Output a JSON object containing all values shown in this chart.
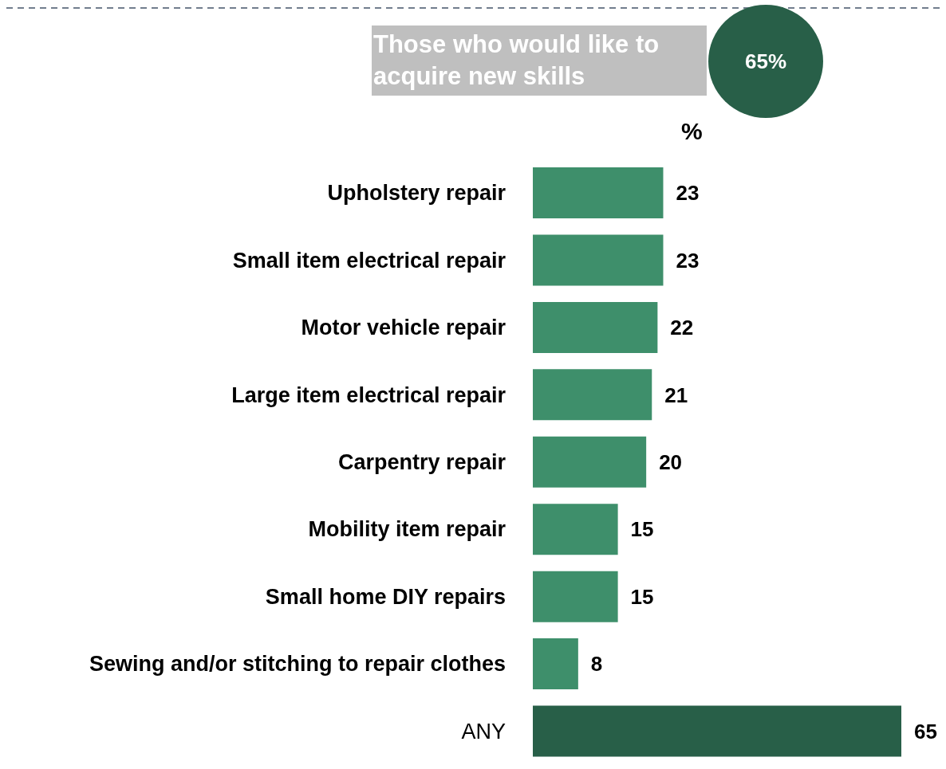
{
  "chart_data": {
    "type": "bar",
    "orientation": "horizontal",
    "title": "Those who would like to acquire new skills",
    "xlabel": "%",
    "annotations": [
      "65%"
    ],
    "categories": [
      "Upholstery repair",
      "Small item electrical repair",
      "Motor vehicle repair",
      "Large item electrical repair",
      "Carpentry repair",
      "Mobility item repair",
      "Small home DIY repairs",
      "Sewing and/or stitching to repair clothes",
      "ANY"
    ],
    "values": [
      23,
      23,
      22,
      21,
      20,
      15,
      15,
      8,
      65
    ],
    "colors": [
      "#3e8f6b",
      "#3e8f6b",
      "#3e8f6b",
      "#3e8f6b",
      "#3e8f6b",
      "#3e8f6b",
      "#3e8f6b",
      "#3e8f6b",
      "#285f48"
    ],
    "data_labels": true
  }
}
